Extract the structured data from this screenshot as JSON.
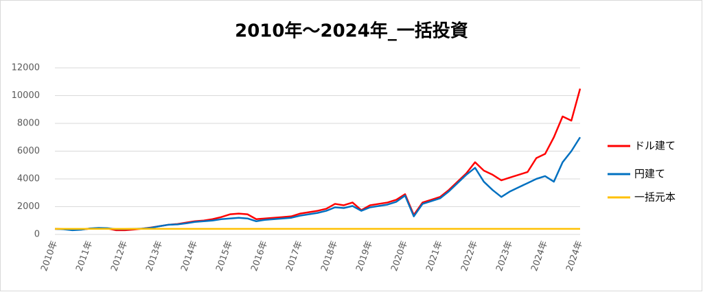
{
  "chart_data": {
    "type": "line",
    "title": "2010年～2024年_一括投資",
    "categories": [
      "2010年",
      null,
      null,
      null,
      "2011年",
      null,
      null,
      null,
      "2012年",
      null,
      null,
      null,
      "2013年",
      null,
      null,
      null,
      "2014年",
      null,
      null,
      null,
      "2015年",
      null,
      null,
      null,
      "2016年",
      null,
      null,
      null,
      "2017年",
      null,
      null,
      null,
      "2018年",
      null,
      null,
      null,
      "2019年",
      null,
      null,
      null,
      "2020年",
      null,
      null,
      null,
      "2021年",
      null,
      null,
      null,
      "2022年",
      null,
      null,
      null,
      "2023年",
      null,
      null,
      null,
      "2024年",
      null,
      null,
      null,
      "2024年"
    ],
    "series": [
      {
        "name": "ドル建て",
        "color": "#ff0000",
        "values": [
          400,
          380,
          320,
          350,
          420,
          450,
          430,
          300,
          300,
          350,
          420,
          500,
          600,
          700,
          750,
          850,
          950,
          1000,
          1100,
          1250,
          1450,
          1500,
          1450,
          1100,
          1150,
          1200,
          1250,
          1300,
          1500,
          1600,
          1700,
          1850,
          2200,
          2100,
          2300,
          1750,
          2100,
          2200,
          2300,
          2500,
          2900,
          1400,
          2300,
          2500,
          2700,
          3200,
          3800,
          4400,
          5200,
          4600,
          4300,
          3900,
          4100,
          4300,
          4500,
          5500,
          5800,
          7000,
          8500,
          8200,
          10500
        ]
      },
      {
        "name": "円建て",
        "color": "#0070c0",
        "values": [
          400,
          370,
          300,
          340,
          430,
          470,
          450,
          380,
          380,
          400,
          420,
          480,
          600,
          700,
          720,
          800,
          900,
          950,
          1000,
          1100,
          1150,
          1200,
          1150,
          950,
          1050,
          1100,
          1150,
          1200,
          1350,
          1450,
          1550,
          1700,
          1950,
          1900,
          2050,
          1700,
          1950,
          2050,
          2150,
          2350,
          2800,
          1300,
          2200,
          2400,
          2600,
          3100,
          3700,
          4300,
          4800,
          3800,
          3200,
          2700,
          3100,
          3400,
          3700,
          4000,
          4200,
          3800,
          5200,
          6000,
          7000
        ]
      },
      {
        "name": "一括元本",
        "color": "#ffc000",
        "values": [
          400,
          400,
          400,
          400,
          400,
          400,
          400,
          400,
          400,
          400,
          400,
          400,
          400,
          400,
          400,
          400,
          400,
          400,
          400,
          400,
          400,
          400,
          400,
          400,
          400,
          400,
          400,
          400,
          400,
          400,
          400,
          400,
          400,
          400,
          400,
          400,
          400,
          400,
          400,
          400,
          400,
          400,
          400,
          400,
          400,
          400,
          400,
          400,
          400,
          400,
          400,
          400,
          400,
          400,
          400,
          400,
          400,
          400,
          400,
          400,
          400
        ]
      }
    ],
    "ylim": [
      0,
      12000
    ],
    "yticks": [
      0,
      2000,
      4000,
      6000,
      8000,
      10000,
      12000
    ],
    "grid": true,
    "legend": "right"
  }
}
